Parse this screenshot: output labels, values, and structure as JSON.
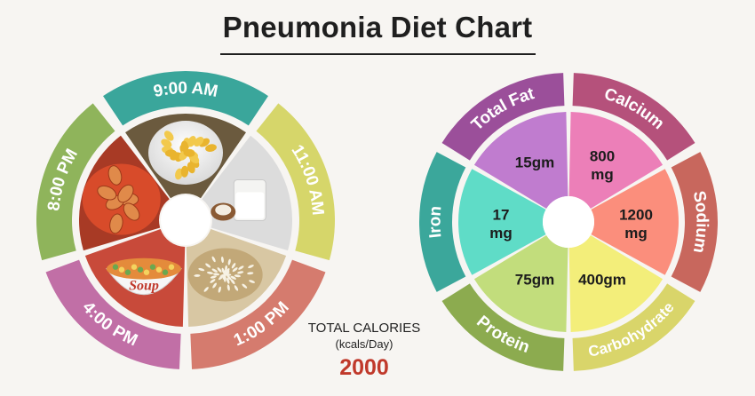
{
  "title": "Pneumonia Diet Chart",
  "calories": {
    "label": "TOTAL CALORIES",
    "unit": "(kcals/Day)",
    "value": "2000"
  },
  "chart_data": [
    {
      "type": "pie",
      "segments": [
        {
          "label": "9:00 AM",
          "color": "#3aa69b",
          "food_icon": "cornflakes-bowl-icon"
        },
        {
          "label": "11:00 AM",
          "color": "#d6d66a",
          "food_icon": "milk-glass-coconut-icon"
        },
        {
          "label": "1:00 PM",
          "color": "#d57b6e",
          "food_icon": "rice-grains-icon"
        },
        {
          "label": "4:00 PM",
          "color": "#c16fa6",
          "food_icon": "soup-bowl-icon"
        },
        {
          "label": "8:00 PM",
          "color": "#8fb45b",
          "food_icon": "chicken-curry-icon"
        }
      ]
    },
    {
      "type": "pie",
      "nutrients": [
        {
          "name": "Total Fat",
          "value": "15gm",
          "color": "#9b4f9a",
          "inner_color": "#c07ccf"
        },
        {
          "name": "Calcium",
          "value": "800 mg",
          "color": "#b5517b",
          "inner_color": "#ec7fb8"
        },
        {
          "name": "Sodium",
          "value": "1200 mg",
          "color": "#c8675d",
          "inner_color": "#fb8e7c"
        },
        {
          "name": "Carbohydrate",
          "value": "400gm",
          "color": "#d9d56a",
          "inner_color": "#f3ee7a"
        },
        {
          "name": "Protein",
          "value": "75gm",
          "color": "#8cab4f",
          "inner_color": "#c2dd7c"
        },
        {
          "name": "Iron",
          "value": "17 mg",
          "color": "#3ba79b",
          "inner_color": "#5fdcc7"
        }
      ]
    }
  ]
}
